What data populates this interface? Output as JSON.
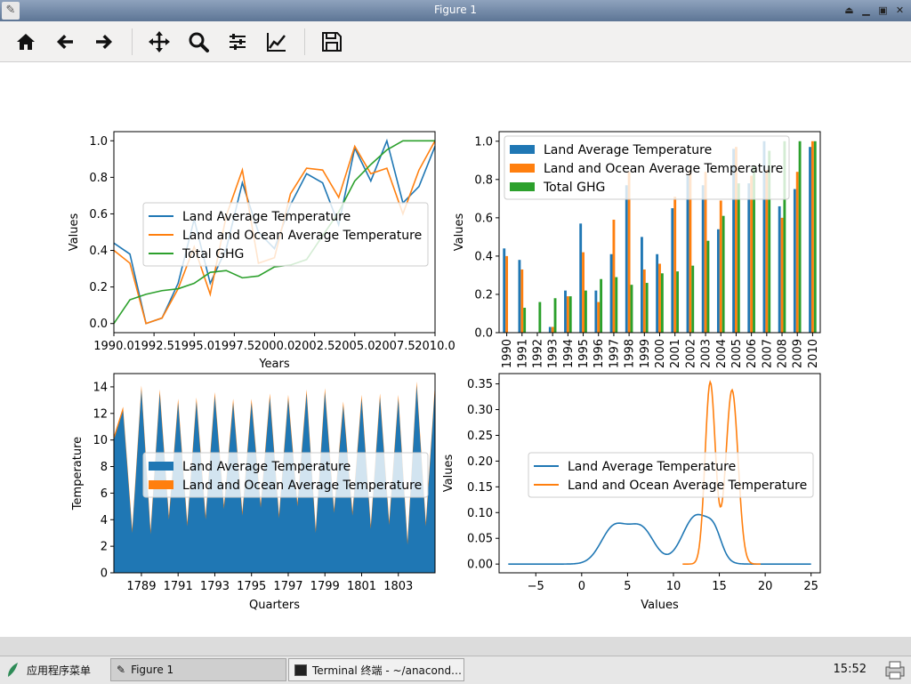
{
  "window": {
    "title": "Figure 1"
  },
  "toolbar": {
    "buttons": [
      "home-icon",
      "back-icon",
      "forward-icon",
      "pan-icon",
      "zoom-icon",
      "configure-subplots-icon",
      "edit-axis-icon",
      "save-icon"
    ]
  },
  "taskbar": {
    "start_label": "应用程序菜单",
    "tasks": [
      {
        "label": "Figure 1",
        "active": true
      },
      {
        "label": "Terminal 终端 - ~/anacond…",
        "active": false
      }
    ],
    "clock": "15:52"
  },
  "colors": {
    "blue": "#1f77b4",
    "orange": "#ff7f0e",
    "green": "#2ca02c"
  },
  "chart_data": [
    {
      "type": "line",
      "x": [
        1990,
        1991,
        1992,
        1993,
        1994,
        1995,
        1996,
        1997,
        1998,
        1999,
        2000,
        2001,
        2002,
        2003,
        2004,
        2005,
        2006,
        2007,
        2008,
        2009,
        2010
      ],
      "series": [
        {
          "name": "Land Average Temperature",
          "values": [
            0.44,
            0.38,
            0.0,
            0.03,
            0.22,
            0.57,
            0.22,
            0.41,
            0.77,
            0.5,
            0.41,
            0.65,
            0.82,
            0.77,
            0.54,
            0.96,
            0.78,
            1.0,
            0.66,
            0.75,
            0.97
          ]
        },
        {
          "name": "Land and Ocean Average Temperature",
          "values": [
            0.4,
            0.33,
            0.0,
            0.03,
            0.19,
            0.42,
            0.16,
            0.59,
            0.84,
            0.33,
            0.36,
            0.71,
            0.85,
            0.84,
            0.69,
            0.97,
            0.82,
            0.85,
            0.6,
            0.84,
            1.0
          ]
        },
        {
          "name": "Total GHG",
          "values": [
            0.0,
            0.13,
            0.16,
            0.18,
            0.19,
            0.22,
            0.28,
            0.29,
            0.25,
            0.26,
            0.31,
            0.32,
            0.35,
            0.48,
            0.61,
            0.78,
            0.87,
            0.95,
            1.0,
            1.0,
            1.0
          ]
        }
      ],
      "xlabel": "Years",
      "ylabel": "Values",
      "xlim": [
        1990,
        2010
      ],
      "ylim": [
        -0.05,
        1.05
      ],
      "xticks": [
        "1990.0",
        "1992.5",
        "1995.0",
        "1997.5",
        "2000.0",
        "2002.5",
        "2005.0",
        "2007.5",
        "2010.0"
      ],
      "yticks": [
        "0.0",
        "0.2",
        "0.4",
        "0.6",
        "0.8",
        "1.0"
      ],
      "legend": "center-right"
    },
    {
      "type": "bar",
      "categories": [
        "1990",
        "1991",
        "1992",
        "1993",
        "1994",
        "1995",
        "1996",
        "1997",
        "1998",
        "1999",
        "2000",
        "2001",
        "2002",
        "2003",
        "2004",
        "2005",
        "2006",
        "2007",
        "2008",
        "2009",
        "2010"
      ],
      "series": [
        {
          "name": "Land Average Temperature",
          "values": [
            0.44,
            0.38,
            0.0,
            0.03,
            0.22,
            0.57,
            0.22,
            0.41,
            0.77,
            0.5,
            0.41,
            0.65,
            0.82,
            0.77,
            0.54,
            0.96,
            0.78,
            1.0,
            0.66,
            0.75,
            0.97
          ]
        },
        {
          "name": "Land and Ocean Average Temperature",
          "values": [
            0.4,
            0.33,
            0.0,
            0.03,
            0.19,
            0.42,
            0.16,
            0.59,
            0.84,
            0.33,
            0.36,
            0.71,
            0.85,
            0.84,
            0.69,
            0.97,
            0.82,
            0.85,
            0.6,
            0.84,
            1.0
          ]
        },
        {
          "name": "Total GHG",
          "values": [
            0.0,
            0.13,
            0.16,
            0.18,
            0.19,
            0.22,
            0.28,
            0.29,
            0.25,
            0.26,
            0.31,
            0.32,
            0.35,
            0.48,
            0.61,
            0.78,
            0.87,
            0.95,
            1.0,
            1.0,
            1.0
          ]
        }
      ],
      "xlabel": "",
      "ylabel": "Values",
      "ylim": [
        0,
        1.05
      ],
      "yticks": [
        "0.0",
        "0.2",
        "0.4",
        "0.6",
        "0.8",
        "1.0"
      ],
      "legend": "top-right"
    },
    {
      "type": "area",
      "xlabel": "Quarters",
      "ylabel": "Temperature",
      "x_range": [
        1787.5,
        1805.0
      ],
      "ylim": [
        0,
        15
      ],
      "xticks": [
        "1789",
        "1791",
        "1793",
        "1795",
        "1797",
        "1799",
        "1801",
        "1803"
      ],
      "yticks": [
        "0",
        "2",
        "4",
        "6",
        "8",
        "10",
        "12",
        "14"
      ],
      "series": [
        {
          "name": "Land Average Temperature",
          "peaks": [
            12.2,
            13.8,
            13.5,
            12.8,
            12.9,
            13.3,
            12.8,
            12.8,
            13.2,
            13.1,
            13.5,
            13.6,
            12.6,
            13.1,
            13.2,
            13.1,
            14.1,
            14.0
          ],
          "troughs": [
            3.0,
            2.9,
            4.0,
            3.5,
            4.0,
            4.8,
            4.3,
            4.9,
            4.1,
            5.0,
            3.0,
            4.5,
            4.3,
            3.3,
            3.6,
            2.1,
            3.5
          ]
        },
        {
          "name": "Land and Ocean Average Temperature",
          "peaks": [
            12.5,
            14.1,
            13.8,
            13.1,
            13.2,
            13.6,
            13.1,
            13.1,
            13.5,
            13.4,
            13.8,
            13.9,
            12.9,
            13.4,
            13.5,
            13.4,
            14.4,
            14.3
          ],
          "troughs": [
            3.3,
            3.2,
            4.3,
            3.8,
            4.3,
            5.1,
            4.6,
            5.2,
            4.4,
            5.3,
            3.3,
            4.8,
            4.6,
            3.6,
            3.9,
            2.4,
            3.8
          ]
        }
      ],
      "legend": "center"
    },
    {
      "type": "line",
      "subtype": "density",
      "xlabel": "Values",
      "ylabel": "Values",
      "xlim": [
        -9,
        26
      ],
      "ylim": [
        -0.017,
        0.37
      ],
      "xticks": [
        "−5",
        "0",
        "5",
        "10",
        "15",
        "20",
        "25"
      ],
      "yticks": [
        "0.00",
        "0.05",
        "0.10",
        "0.15",
        "0.20",
        "0.25",
        "0.30",
        "0.35"
      ],
      "series": [
        {
          "name": "Land Average Temperature",
          "x_range": [
            -8,
            25
          ],
          "components": [
            [
              3.5,
              1.4,
              0.07
            ],
            [
              6.5,
              1.4,
              0.068
            ],
            [
              12.5,
              1.5,
              0.094
            ],
            [
              14.5,
              0.8,
              0.038
            ]
          ]
        },
        {
          "name": "Land and Ocean Average Temperature",
          "x_range": [
            11,
            19.5
          ],
          "components": [
            [
              14.0,
              0.55,
              0.345
            ],
            [
              16.4,
              0.65,
              0.33
            ],
            [
              15.2,
              0.9,
              0.02
            ]
          ]
        }
      ],
      "legend": "center-right"
    }
  ]
}
